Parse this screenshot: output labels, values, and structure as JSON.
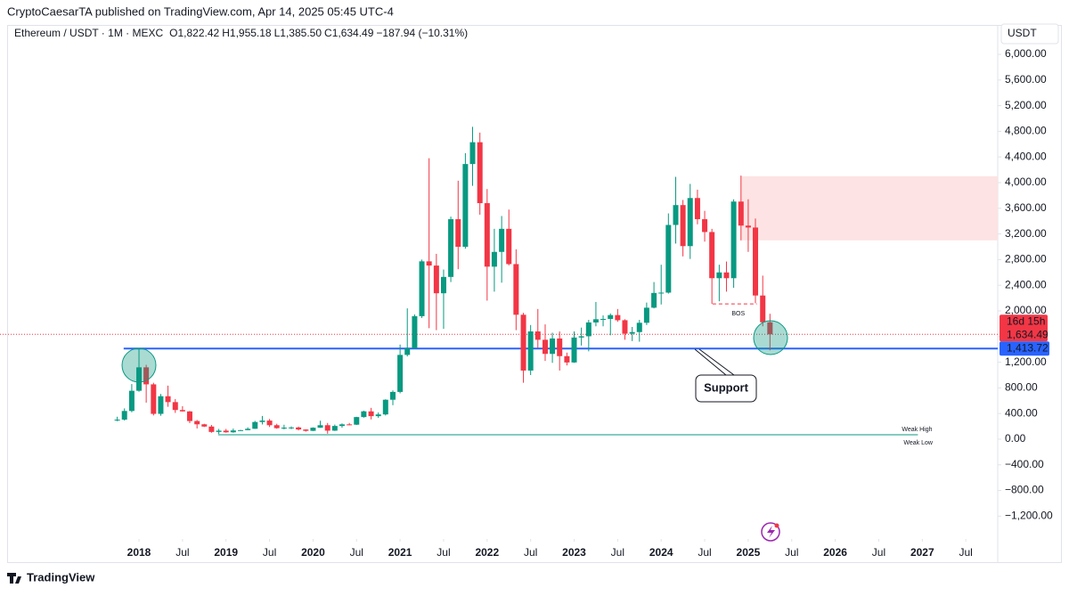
{
  "header": {
    "publisher": "CryptoCaesarTA published on TradingView.com, Apr 14, 2025 05:45 UTC-4"
  },
  "footer": {
    "brand": "TradingView"
  },
  "chart_data": {
    "type": "candlestick",
    "legend": {
      "symbol": "Ethereum / USDT · 1M · MEXC",
      "ohlc": [
        {
          "key": "O",
          "value": "1,822.42"
        },
        {
          "key": "H",
          "value": "1,955.18"
        },
        {
          "key": "L",
          "value": "1,385.50"
        },
        {
          "key": "C",
          "value": "1,634.49"
        }
      ],
      "change": "−187.94 (−10.31%)"
    },
    "currency": "USDT",
    "up_color": "#089981",
    "down_color": "#f23645",
    "x": [
      2017.75,
      2017.833,
      2017.917,
      2018,
      2018.083,
      2018.167,
      2018.25,
      2018.333,
      2018.417,
      2018.5,
      2018.583,
      2018.667,
      2018.75,
      2018.833,
      2018.917,
      2019,
      2019.083,
      2019.167,
      2019.25,
      2019.333,
      2019.417,
      2019.5,
      2019.583,
      2019.667,
      2019.75,
      2019.833,
      2019.917,
      2020,
      2020.083,
      2020.167,
      2020.25,
      2020.333,
      2020.417,
      2020.5,
      2020.583,
      2020.667,
      2020.75,
      2020.833,
      2020.917,
      2021,
      2021.083,
      2021.167,
      2021.25,
      2021.333,
      2021.417,
      2021.5,
      2021.583,
      2021.667,
      2021.75,
      2021.833,
      2021.917,
      2022,
      2022.083,
      2022.167,
      2022.25,
      2022.333,
      2022.417,
      2022.5,
      2022.583,
      2022.667,
      2022.75,
      2022.833,
      2022.917,
      2023,
      2023.083,
      2023.167,
      2023.25,
      2023.333,
      2023.417,
      2023.5,
      2023.583,
      2023.667,
      2023.75,
      2023.833,
      2023.917,
      2024,
      2024.083,
      2024.167,
      2024.25,
      2024.333,
      2024.417,
      2024.5,
      2024.583,
      2024.667,
      2024.75,
      2024.833,
      2024.917,
      2025,
      2025.083,
      2025.167,
      2025.25
    ],
    "open": [
      300,
      305,
      440,
      755,
      1120,
      855,
      395,
      670,
      578,
      455,
      433,
      283,
      232,
      197,
      113,
      133,
      107,
      136,
      141,
      162,
      268,
      290,
      218,
      172,
      180,
      183,
      151,
      130,
      179,
      218,
      133,
      206,
      231,
      226,
      345,
      434,
      359,
      386,
      615,
      737,
      1314,
      1416,
      1918,
      2773,
      2707,
      2275,
      2530,
      3430,
      3000,
      4290,
      4630,
      3680,
      2690,
      2920,
      3280,
      2730,
      1940,
      1070,
      1680,
      1550,
      1330,
      1570,
      1295,
      1196,
      1585,
      1605,
      1820,
      1870,
      1875,
      1935,
      1855,
      1645,
      1670,
      1815,
      2050,
      2280,
      2285,
      3340,
      3650,
      3010,
      3760,
      3430,
      3230,
      2510,
      2600,
      2510,
      3705,
      3330,
      3300,
      2240,
      1822.42
    ],
    "high": [
      350,
      480,
      860,
      1420,
      1160,
      880,
      705,
      835,
      625,
      515,
      440,
      300,
      240,
      222,
      160,
      160,
      165,
      145,
      185,
      285,
      362,
      315,
      240,
      225,
      199,
      196,
      155,
      185,
      288,
      253,
      228,
      246,
      253,
      349,
      445,
      488,
      417,
      622,
      760,
      1475,
      2040,
      1945,
      2800,
      4380,
      2890,
      2645,
      3470,
      4030,
      4460,
      4870,
      4780,
      3900,
      3280,
      3480,
      3580,
      2960,
      1970,
      1780,
      2030,
      1790,
      1660,
      1680,
      1350,
      1680,
      1740,
      1860,
      2140,
      1930,
      1960,
      2030,
      1870,
      1750,
      1860,
      2130,
      2450,
      2720,
      3520,
      4090,
      3730,
      3980,
      3890,
      3560,
      3280,
      2720,
      2770,
      3740,
      4110,
      3740,
      3440,
      2550,
      1955.18
    ],
    "low": [
      280,
      290,
      420,
      740,
      570,
      370,
      365,
      505,
      410,
      430,
      250,
      167,
      190,
      100,
      82,
      101,
      100,
      127,
      140,
      160,
      230,
      190,
      163,
      152,
      155,
      137,
      117,
      127,
      177,
      86,
      128,
      179,
      217,
      222,
      335,
      308,
      333,
      370,
      530,
      715,
      1290,
      1410,
      1890,
      1730,
      1700,
      1720,
      2450,
      2650,
      2970,
      3950,
      3500,
      2160,
      2300,
      2440,
      2710,
      1700,
      880,
      1000,
      1420,
      1220,
      1190,
      1070,
      1150,
      1190,
      1460,
      1370,
      1760,
      1760,
      1620,
      1830,
      1550,
      1530,
      1520,
      1780,
      2040,
      2100,
      2270,
      3050,
      2850,
      2810,
      3350,
      3080,
      2110,
      2150,
      2300,
      2360,
      3100,
      2920,
      2120,
      1760,
      1385.5
    ],
    "close": [
      305,
      440,
      755,
      1120,
      855,
      395,
      670,
      578,
      455,
      433,
      283,
      232,
      197,
      113,
      133,
      107,
      136,
      141,
      162,
      268,
      290,
      218,
      172,
      180,
      183,
      151,
      130,
      179,
      218,
      133,
      206,
      231,
      226,
      345,
      434,
      359,
      386,
      615,
      737,
      1314,
      1416,
      1918,
      2773,
      2707,
      2275,
      2530,
      3430,
      3000,
      4290,
      4630,
      3680,
      2690,
      2920,
      3280,
      2730,
      1940,
      1070,
      1680,
      1550,
      1330,
      1570,
      1295,
      1196,
      1585,
      1605,
      1820,
      1870,
      1875,
      1935,
      1855,
      1645,
      1670,
      1815,
      2050,
      2280,
      2285,
      3340,
      3650,
      3010,
      3760,
      3430,
      3230,
      2510,
      2600,
      2510,
      3705,
      3330,
      3300,
      2240,
      1822.42,
      1634.49
    ],
    "xlim": [
      2016.403,
      2027.867
    ],
    "xticks": [
      {
        "value": 2018,
        "label": "2018"
      },
      {
        "value": 2018.5,
        "label": "Jul"
      },
      {
        "value": 2019,
        "label": "2019"
      },
      {
        "value": 2019.5,
        "label": "Jul"
      },
      {
        "value": 2020,
        "label": "2020"
      },
      {
        "value": 2020.5,
        "label": "Jul"
      },
      {
        "value": 2021,
        "label": "2021"
      },
      {
        "value": 2021.5,
        "label": "Jul"
      },
      {
        "value": 2022,
        "label": "2022"
      },
      {
        "value": 2022.5,
        "label": "Jul"
      },
      {
        "value": 2023,
        "label": "2023"
      },
      {
        "value": 2023.5,
        "label": "Jul"
      },
      {
        "value": 2024,
        "label": "2024"
      },
      {
        "value": 2024.5,
        "label": "Jul"
      },
      {
        "value": 2025,
        "label": "2025"
      },
      {
        "value": 2025.5,
        "label": "Jul"
      },
      {
        "value": 2026,
        "label": "2026"
      },
      {
        "value": 2026.5,
        "label": "Jul"
      },
      {
        "value": 2027,
        "label": "2027"
      },
      {
        "value": 2027.5,
        "label": "Jul"
      }
    ],
    "ylim": [
      -1556,
      6153
    ],
    "yticks": [
      {
        "value": 6000,
        "label": "6,000.00"
      },
      {
        "value": 5600,
        "label": "5,600.00"
      },
      {
        "value": 5200,
        "label": "5,200.00"
      },
      {
        "value": 4800,
        "label": "4,800.00"
      },
      {
        "value": 4400,
        "label": "4,400.00"
      },
      {
        "value": 4000,
        "label": "4,000.00"
      },
      {
        "value": 3600,
        "label": "3,600.00"
      },
      {
        "value": 3200,
        "label": "3,200.00"
      },
      {
        "value": 2800,
        "label": "2,800.00"
      },
      {
        "value": 2400,
        "label": "2,400.00"
      },
      {
        "value": 2000,
        "label": "2,000.00"
      },
      {
        "value": 1600,
        "label": "1,600.00"
      },
      {
        "value": 1200,
        "label": "1,200.00"
      },
      {
        "value": 800,
        "label": "800.00"
      },
      {
        "value": 400,
        "label": "400.00"
      },
      {
        "value": 0,
        "label": "0.00"
      },
      {
        "value": -400,
        "label": "−400.00"
      },
      {
        "value": -800,
        "label": "−800.00"
      },
      {
        "value": -1200,
        "label": "−1,200.00"
      }
    ],
    "grid": false,
    "support_line": {
      "value": 1413.72,
      "label": "1,413.72",
      "color": "#2962ff"
    },
    "last_price": {
      "value": 1634.49,
      "label": "1,634.49",
      "countdown": "16d 15h",
      "color": "#f23645"
    },
    "zone": {
      "from": 3100,
      "to": 4100,
      "xstart": 2024.917,
      "color": "#fde3e3"
    },
    "bos": {
      "value": 2110,
      "label": "BOS",
      "xstart": 2024.59,
      "xend": 2025.1
    },
    "weak_levels": {
      "value": 70,
      "xstart": 2018.91,
      "xend": 2026.95,
      "high_label": "Weak High",
      "low_label": "Weak Low"
    },
    "annotations": {
      "support": "Support"
    }
  }
}
